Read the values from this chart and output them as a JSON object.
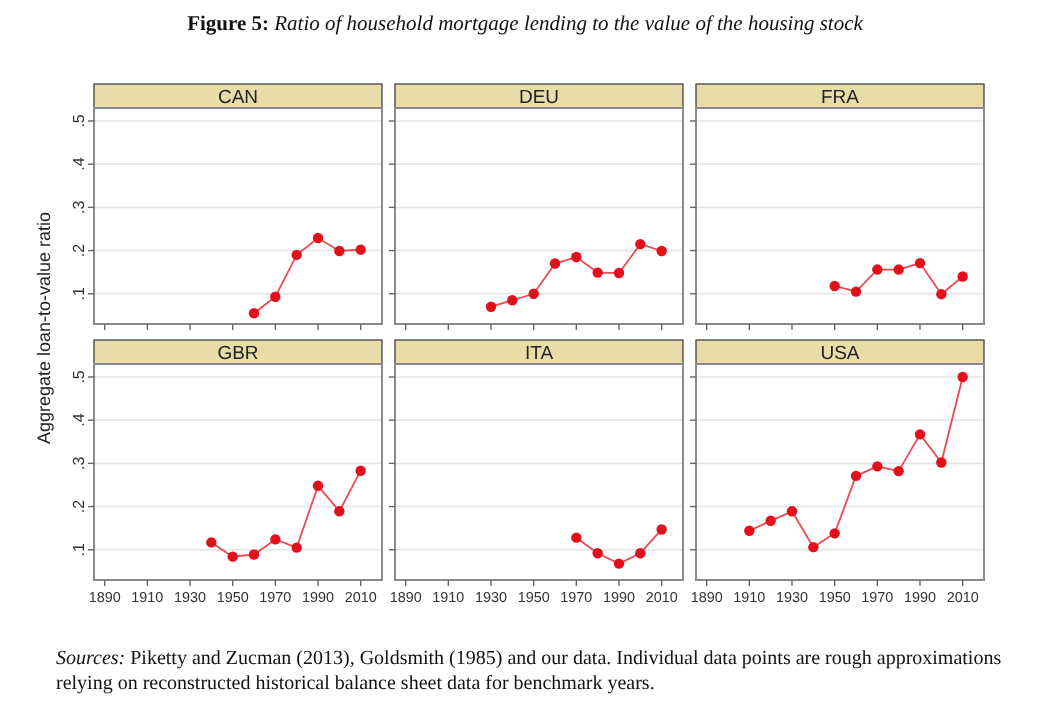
{
  "chart_data": [
    {
      "type": "line",
      "title": "CAN",
      "annotations": [
        "Figure 5: Ratio of household mortgage lending to the value of the housing stock",
        "Sources: Piketty and Zucman (2013), Goldsmith (1985) and our data. Individual data points are rough approximations relying on reconstructed historical balance sheet data for benchmark years."
      ],
      "x": [
        1960,
        1970,
        1980,
        1990,
        2000,
        2010
      ],
      "series": [
        {
          "color": "#e3101b",
          "values": [
            0.055,
            0.093,
            0.19,
            0.229,
            0.199,
            0.202
          ]
        }
      ],
      "xlim": [
        1885,
        2020
      ],
      "ylim": [
        0.03,
        0.53
      ],
      "xticks": [
        1890,
        1910,
        1930,
        1950,
        1970,
        1990,
        2010
      ],
      "yticks": [
        {
          "value": 0.1,
          "label": ".1"
        },
        {
          "value": 0.2,
          "label": ".2"
        },
        {
          "value": 0.3,
          "label": ".3"
        },
        {
          "value": 0.4,
          "label": ".4"
        },
        {
          "value": 0.5,
          "label": ".5"
        }
      ],
      "grid": "y",
      "marker": "circle",
      "tick_labels": "y"
    },
    {
      "type": "line",
      "title": "DEU",
      "x": [
        1930,
        1940,
        1950,
        1960,
        1970,
        1980,
        1990,
        2000,
        2010
      ],
      "series": [
        {
          "color": "#e3101b",
          "values": [
            0.07,
            0.085,
            0.1,
            0.17,
            0.185,
            0.149,
            0.148,
            0.215,
            0.199
          ]
        }
      ],
      "xlim": [
        1885,
        2020
      ],
      "ylim": [
        0.03,
        0.53
      ],
      "xticks": [
        1890,
        1910,
        1930,
        1950,
        1970,
        1990,
        2010
      ],
      "yticks": [
        {
          "value": 0.1,
          "label": null
        },
        {
          "value": 0.2,
          "label": null
        },
        {
          "value": 0.3,
          "label": null
        },
        {
          "value": 0.4,
          "label": null
        },
        {
          "value": 0.5,
          "label": null
        }
      ],
      "grid": "y",
      "marker": "circle",
      "tick_labels": false
    },
    {
      "type": "line",
      "title": "FRA",
      "x": [
        1950,
        1960,
        1970,
        1980,
        1990,
        2000,
        2010
      ],
      "series": [
        {
          "color": "#e3101b",
          "values": [
            0.118,
            0.105,
            0.156,
            0.156,
            0.171,
            0.099,
            0.14
          ]
        }
      ],
      "xlim": [
        1885,
        2020
      ],
      "ylim": [
        0.03,
        0.53
      ],
      "xticks": [
        1890,
        1910,
        1930,
        1950,
        1970,
        1990,
        2010
      ],
      "yticks": [
        {
          "value": 0.1,
          "label": null
        },
        {
          "value": 0.2,
          "label": null
        },
        {
          "value": 0.3,
          "label": null
        },
        {
          "value": 0.4,
          "label": null
        },
        {
          "value": 0.5,
          "label": null
        }
      ],
      "grid": "y",
      "marker": "circle",
      "tick_labels": false
    },
    {
      "type": "line",
      "title": "GBR",
      "ylabel": "Aggregate loan-to-value ratio",
      "x": [
        1940,
        1950,
        1960,
        1970,
        1980,
        1990,
        2000,
        2010
      ],
      "series": [
        {
          "color": "#e3101b",
          "values": [
            0.117,
            0.084,
            0.089,
            0.124,
            0.105,
            0.248,
            0.189,
            0.283
          ]
        }
      ],
      "xlim": [
        1885,
        2020
      ],
      "ylim": [
        0.03,
        0.53
      ],
      "xticks": [
        1890,
        1910,
        1930,
        1950,
        1970,
        1990,
        2010
      ],
      "yticks": [
        {
          "value": 0.1,
          "label": ".1"
        },
        {
          "value": 0.2,
          "label": ".2"
        },
        {
          "value": 0.3,
          "label": ".3"
        },
        {
          "value": 0.4,
          "label": ".4"
        },
        {
          "value": 0.5,
          "label": ".5"
        }
      ],
      "grid": "y",
      "marker": "circle"
    },
    {
      "type": "line",
      "title": "ITA",
      "x": [
        1970,
        1980,
        1990,
        2000,
        2010
      ],
      "series": [
        {
          "color": "#e3101b",
          "values": [
            0.128,
            0.092,
            0.068,
            0.092,
            0.147
          ]
        }
      ],
      "xlim": [
        1885,
        2020
      ],
      "ylim": [
        0.03,
        0.53
      ],
      "xticks": [
        1890,
        1910,
        1930,
        1950,
        1970,
        1990,
        2010
      ],
      "yticks": [
        {
          "value": 0.1,
          "label": null
        },
        {
          "value": 0.2,
          "label": null
        },
        {
          "value": 0.3,
          "label": null
        },
        {
          "value": 0.4,
          "label": null
        },
        {
          "value": 0.5,
          "label": null
        }
      ],
      "grid": "y",
      "marker": "circle",
      "tick_labels": "x"
    },
    {
      "type": "line",
      "title": "USA",
      "x": [
        1910,
        1920,
        1930,
        1940,
        1950,
        1960,
        1970,
        1980,
        1990,
        2000,
        2010
      ],
      "series": [
        {
          "color": "#e3101b",
          "values": [
            0.144,
            0.167,
            0.189,
            0.106,
            0.138,
            0.271,
            0.293,
            0.282,
            0.367,
            0.302,
            0.5
          ]
        }
      ],
      "xlim": [
        1885,
        2020
      ],
      "ylim": [
        0.03,
        0.53
      ],
      "xticks": [
        1890,
        1910,
        1930,
        1950,
        1970,
        1990,
        2010
      ],
      "yticks": [
        {
          "value": 0.1,
          "label": null
        },
        {
          "value": 0.2,
          "label": null
        },
        {
          "value": 0.3,
          "label": null
        },
        {
          "value": 0.4,
          "label": null
        },
        {
          "value": 0.5,
          "label": null
        }
      ],
      "grid": "y",
      "marker": "circle",
      "tick_labels": "x"
    }
  ]
}
